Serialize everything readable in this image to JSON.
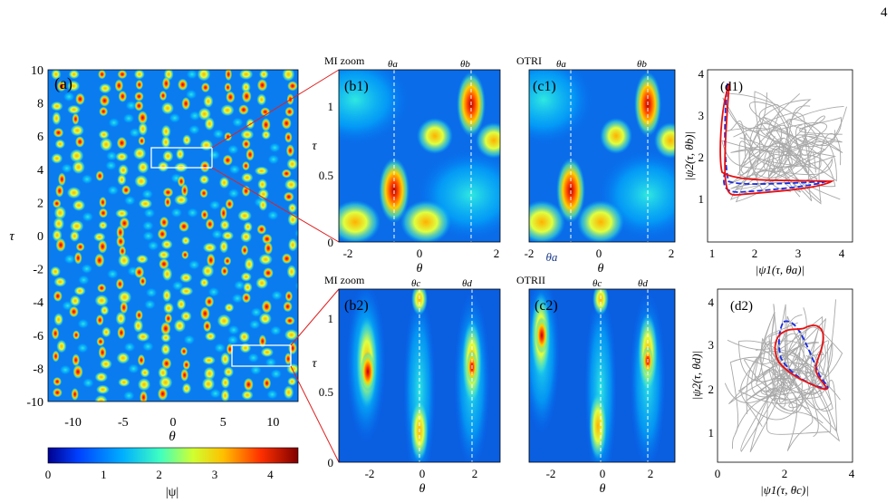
{
  "page_number": "4",
  "colorbar": {
    "label": "|ψ|",
    "ticks": [
      "0",
      "1",
      "2",
      "3",
      "4"
    ],
    "range": [
      0,
      4.5
    ],
    "colors": [
      "#00008f",
      "#0060ff",
      "#00d0ff",
      "#60ff90",
      "#ffe000",
      "#ff6000",
      "#a00000"
    ]
  },
  "panel_a": {
    "tag": "(a)",
    "xlabel": "θ",
    "ylabel": "τ",
    "xticks": [
      "-10",
      "-5",
      "0",
      "5",
      "10"
    ],
    "yticks": [
      "10",
      "8",
      "6",
      "4",
      "2",
      "0",
      "-2",
      "-4",
      "-6",
      "-8",
      "-10"
    ],
    "xlim": [
      -12.5,
      12.5
    ],
    "ylim": [
      -10,
      10
    ]
  },
  "panel_b1": {
    "title": "MI zoom",
    "tag": "(b1)",
    "line_labels": [
      "θa",
      "θb"
    ],
    "xlabel": "θ",
    "ylabel": "τ",
    "xticks": [
      "-2",
      "0",
      "2"
    ],
    "yticks": [
      "1",
      "0.5",
      "0"
    ]
  },
  "panel_c1": {
    "title": "OTRI",
    "tag": "(c1)",
    "line_labels": [
      "θa",
      "θb"
    ],
    "xlabel": "θ",
    "xticks": [
      "-2",
      "θa",
      "0",
      "2"
    ]
  },
  "panel_b2": {
    "title": "MI zoom",
    "tag": "(b2)",
    "line_labels": [
      "θc",
      "θd"
    ],
    "xlabel": "θ",
    "ylabel": "τ",
    "xticks": [
      "-2",
      "0",
      "2"
    ],
    "yticks": [
      "1",
      "0.5",
      "0"
    ]
  },
  "panel_c2": {
    "title": "OTRII",
    "tag": "(c2)",
    "line_labels": [
      "θc",
      "θd"
    ],
    "xlabel": "θ",
    "xticks": [
      "-2",
      "0",
      "2"
    ]
  },
  "panel_d1": {
    "tag": "(d1)",
    "xlabel": "|ψ1(τ, θa)|",
    "ylabel": "|ψ2(τ, θb)|",
    "xticks": [
      "1",
      "2",
      "3",
      "4"
    ],
    "yticks": [
      "4",
      "3",
      "2",
      "1"
    ],
    "xlim": [
      1,
      4.3
    ],
    "ylim": [
      0.7,
      4.1
    ]
  },
  "panel_d2": {
    "tag": "(d2)",
    "xlabel": "|ψ1(τ, θc)|",
    "ylabel": "|ψ2(τ, θd)|",
    "xticks": [
      "0",
      "2",
      "4"
    ],
    "yticks": [
      "4",
      "3",
      "2",
      "1"
    ],
    "xlim": [
      0,
      4
    ],
    "ylim": [
      0.3,
      4.2
    ]
  }
}
